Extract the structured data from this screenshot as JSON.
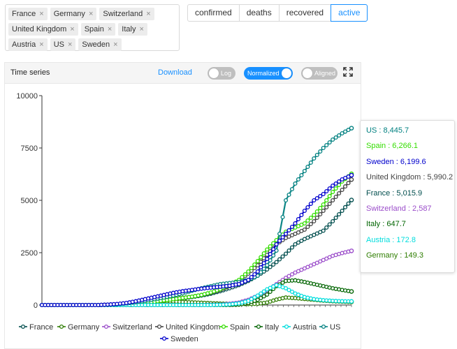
{
  "countries": [
    "France",
    "Germany",
    "Switzerland",
    "United Kingdom",
    "Spain",
    "Italy",
    "Austria",
    "US",
    "Sweden"
  ],
  "metrics": [
    {
      "label": "confirmed",
      "active": false
    },
    {
      "label": "deaths",
      "active": false
    },
    {
      "label": "recovered",
      "active": false
    },
    {
      "label": "active",
      "active": true
    }
  ],
  "panel": {
    "title": "Time series",
    "download": "Download",
    "log_label": "Log",
    "normalized_label": "Normalized",
    "aligned_label": "Aligned",
    "log_on": false,
    "normalized_on": true,
    "aligned_on": false
  },
  "tooltip": [
    {
      "label": "US : 8,445.7",
      "color": "#008080"
    },
    {
      "label": "Spain : 6,266.1",
      "color": "#33dd00"
    },
    {
      "label": "Sweden : 6,199.6",
      "color": "#0000cc"
    },
    {
      "label": "United Kingdom : 5,990.2",
      "color": "#444444"
    },
    {
      "label": "France : 5,015.9",
      "color": "#004d4d"
    },
    {
      "label": "Switzerland : 2,587",
      "color": "#9b4dca"
    },
    {
      "label": "Italy : 647.7",
      "color": "#006400"
    },
    {
      "label": "Austria : 172.8",
      "color": "#00dddd"
    },
    {
      "label": "Germany : 149.3",
      "color": "#2e7d00"
    }
  ],
  "chart_data": {
    "type": "line",
    "ylim": [
      0,
      10000
    ],
    "yticks": [
      "0",
      "2500",
      "5000",
      "7500",
      "10000"
    ],
    "grid": false,
    "legend_position": "bottom",
    "series": [
      {
        "name": "France",
        "color": "#004d4d",
        "values": [
          0,
          0,
          0,
          0,
          0,
          0,
          0,
          20,
          40,
          60,
          90,
          110,
          150,
          200,
          260,
          320,
          380,
          450,
          540,
          660,
          800,
          950,
          1150,
          1400,
          1700,
          2050,
          2450,
          2900,
          3150,
          3350,
          3550,
          4000,
          4500,
          5015.9
        ]
      },
      {
        "name": "Germany",
        "color": "#2e7d00",
        "values": [
          0,
          0,
          0,
          0,
          0,
          0,
          0,
          10,
          30,
          60,
          100,
          150,
          170,
          180,
          170,
          150,
          130,
          110,
          90,
          70,
          60,
          50,
          45,
          60,
          120,
          260,
          360,
          330,
          290,
          250,
          210,
          180,
          160,
          149.3
        ]
      },
      {
        "name": "Switzerland",
        "color": "#9b4dca",
        "values": [
          0,
          0,
          0,
          0,
          0,
          0,
          0,
          0,
          0,
          0,
          0,
          0,
          0,
          0,
          0,
          0,
          0,
          0,
          10,
          20,
          60,
          120,
          250,
          450,
          700,
          1000,
          1300,
          1550,
          1750,
          1950,
          2150,
          2350,
          2480,
          2587
        ]
      },
      {
        "name": "United Kingdom",
        "color": "#444444",
        "values": [
          0,
          0,
          0,
          0,
          0,
          0,
          0,
          10,
          30,
          60,
          100,
          150,
          200,
          250,
          300,
          350,
          400,
          480,
          580,
          720,
          900,
          1150,
          1500,
          1900,
          2400,
          2900,
          3200,
          3400,
          3600,
          4000,
          4500,
          5000,
          5500,
          5990.2
        ]
      },
      {
        "name": "Spain",
        "color": "#33dd00",
        "values": [
          0,
          0,
          0,
          0,
          0,
          0,
          0,
          10,
          20,
          40,
          70,
          110,
          160,
          220,
          280,
          340,
          400,
          480,
          600,
          750,
          950,
          1200,
          1600,
          2100,
          2650,
          3100,
          3500,
          3700,
          3900,
          4300,
          4800,
          5400,
          5900,
          6266.1
        ]
      },
      {
        "name": "Italy",
        "color": "#006400",
        "values": [
          0,
          0,
          0,
          0,
          0,
          0,
          0,
          0,
          0,
          0,
          0,
          0,
          0,
          0,
          0,
          0,
          0,
          0,
          0,
          0,
          5,
          20,
          100,
          250,
          500,
          900,
          1150,
          1180,
          1100,
          1000,
          900,
          800,
          720,
          647.7
        ]
      },
      {
        "name": "Austria",
        "color": "#00dddd",
        "values": [
          0,
          0,
          0,
          0,
          0,
          0,
          0,
          0,
          0,
          0,
          0,
          0,
          0,
          0,
          0,
          0,
          0,
          0,
          0,
          10,
          30,
          80,
          200,
          450,
          750,
          950,
          800,
          550,
          380,
          280,
          230,
          200,
          180,
          172.8
        ]
      },
      {
        "name": "US",
        "color": "#008080",
        "values": [
          0,
          0,
          0,
          0,
          0,
          0,
          0,
          10,
          40,
          80,
          130,
          200,
          280,
          360,
          450,
          560,
          680,
          800,
          900,
          1000,
          1050,
          1100,
          1200,
          1400,
          1900,
          2600,
          5000,
          5800,
          6400,
          7000,
          7500,
          7900,
          8200,
          8445.7
        ]
      },
      {
        "name": "Sweden",
        "color": "#0000cc",
        "values": [
          0,
          0,
          0,
          0,
          0,
          0,
          0,
          20,
          50,
          100,
          180,
          280,
          380,
          480,
          580,
          660,
          720,
          780,
          830,
          870,
          920,
          1000,
          1200,
          1600,
          2200,
          2900,
          3400,
          3900,
          4500,
          5000,
          5300,
          5700,
          6000,
          6199.6
        ]
      }
    ]
  }
}
